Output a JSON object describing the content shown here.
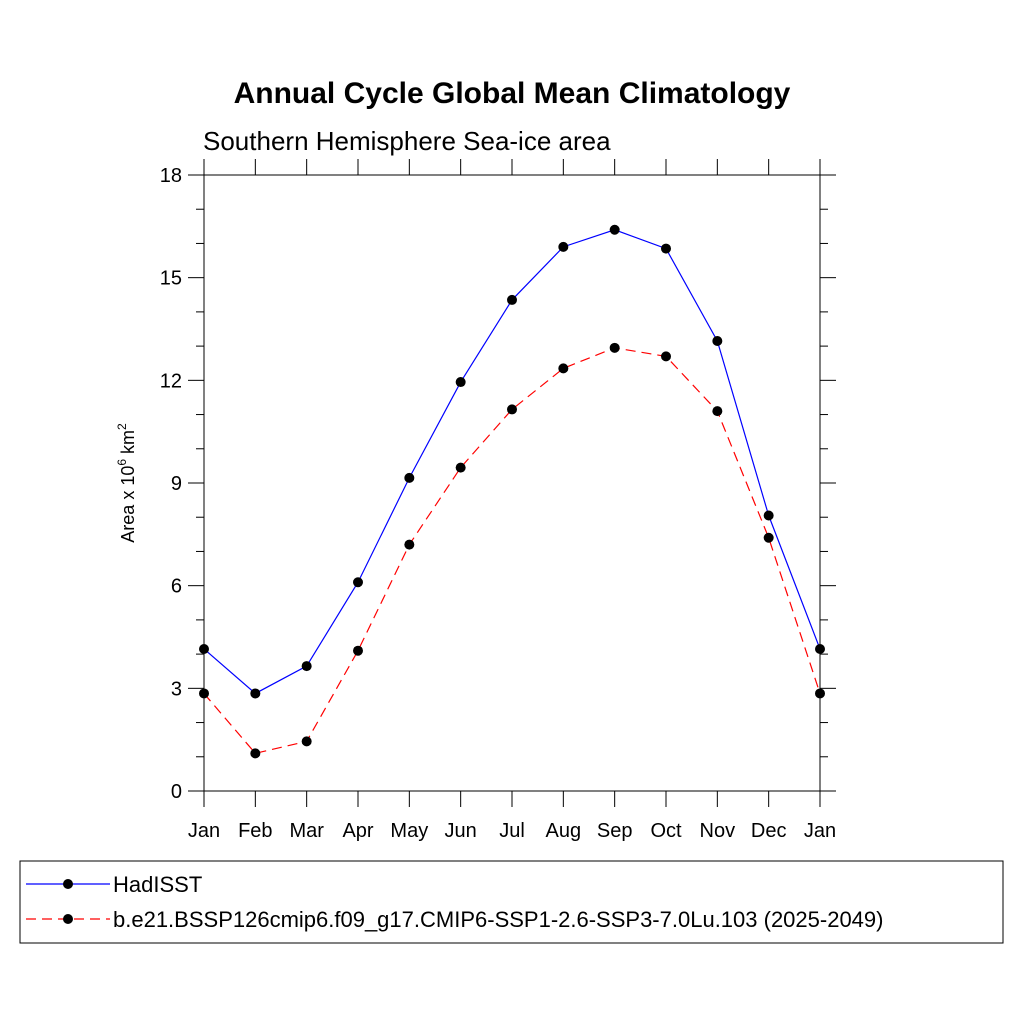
{
  "chart_data": {
    "type": "line",
    "title": "Annual Cycle Global Mean Climatology",
    "subtitle": "Southern Hemisphere Sea-ice area",
    "ylabel_parts": [
      "Area x 10",
      "6",
      " km",
      "2"
    ],
    "categories": [
      "Jan",
      "Feb",
      "Mar",
      "Apr",
      "May",
      "Jun",
      "Jul",
      "Aug",
      "Sep",
      "Oct",
      "Nov",
      "Dec",
      "Jan"
    ],
    "ylim": [
      0,
      18
    ],
    "yticks": [
      0,
      3,
      6,
      9,
      12,
      15,
      18
    ],
    "grid": false,
    "legend_position": "bottom",
    "series": [
      {
        "name": "HadISST",
        "color": "#0000ff",
        "dash": "solid",
        "values": [
          4.15,
          2.85,
          3.65,
          6.1,
          9.15,
          11.95,
          14.35,
          15.9,
          16.4,
          15.85,
          13.15,
          8.05,
          4.15
        ]
      },
      {
        "name": "b.e21.BSSP126cmip6.f09_g17.CMIP6-SSP1-2.6-SSP3-7.0Lu.103 (2025-2049)",
        "color": "#ff0000",
        "dash": "dashed",
        "values": [
          2.85,
          1.1,
          1.45,
          4.1,
          7.2,
          9.45,
          11.15,
          12.35,
          12.95,
          12.7,
          11.1,
          7.4,
          2.85
        ]
      }
    ]
  }
}
